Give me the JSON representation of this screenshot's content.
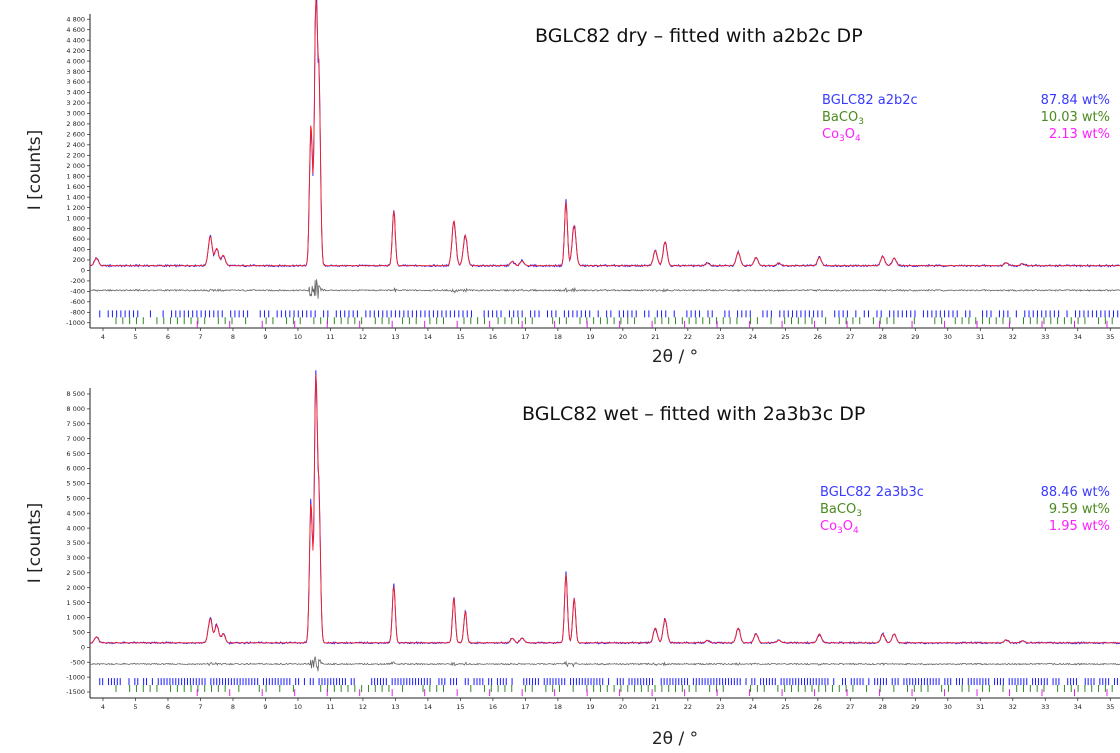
{
  "chart_data": [
    {
      "type": "line",
      "title": "BGLC82 dry – fitted with a2b2c DP",
      "xlabel": "2θ / °",
      "ylabel": "I [counts]",
      "xlim": [
        3.6,
        35.3
      ],
      "ylim": [
        -1100,
        4900
      ],
      "xticks": [
        4,
        5,
        6,
        7,
        8,
        9,
        10,
        11,
        12,
        13,
        14,
        15,
        16,
        17,
        18,
        19,
        20,
        21,
        22,
        23,
        24,
        25,
        26,
        27,
        28,
        29,
        30,
        31,
        32,
        33,
        34,
        35
      ],
      "yticks": [
        4800,
        4600,
        4400,
        4200,
        4000,
        3800,
        3600,
        3400,
        3200,
        3000,
        2800,
        2600,
        2400,
        2200,
        2000,
        1800,
        1600,
        1400,
        1200,
        1000,
        800,
        600,
        400,
        200,
        0,
        -200,
        -400,
        -600,
        -800,
        -1000
      ],
      "ytick_labels": [
        "4 800",
        "4 600",
        "4 400",
        "4 200",
        "4 000",
        "3 800",
        "3 600",
        "3 400",
        "3 200",
        "3 000",
        "2 800",
        "2 600",
        "2 400",
        "2 200",
        "2 000",
        "1 800",
        "1 600",
        "1 400",
        "1 200",
        "1 000",
        "800",
        "600",
        "400",
        "200",
        "0",
        "-200",
        "-400",
        "-600",
        "-800",
        "-1000"
      ],
      "background": 90,
      "difference_offset": -380,
      "peaks": [
        [
          3.8,
          150
        ],
        [
          7.3,
          560
        ],
        [
          7.5,
          330
        ],
        [
          7.7,
          200
        ],
        [
          10.4,
          2700
        ],
        [
          10.55,
          4800
        ],
        [
          10.65,
          3300
        ],
        [
          12.95,
          1050
        ],
        [
          14.8,
          860
        ],
        [
          15.15,
          580
        ],
        [
          16.6,
          80
        ],
        [
          16.9,
          90
        ],
        [
          18.25,
          1220
        ],
        [
          18.5,
          760
        ],
        [
          21.0,
          290
        ],
        [
          21.3,
          460
        ],
        [
          22.6,
          50
        ],
        [
          23.55,
          260
        ],
        [
          24.1,
          160
        ],
        [
          24.8,
          50
        ],
        [
          26.05,
          160
        ],
        [
          28.0,
          180
        ],
        [
          28.35,
          150
        ],
        [
          31.8,
          60
        ],
        [
          32.3,
          40
        ]
      ],
      "tick_rows": [
        {
          "name": "BGLC82 a2b2c",
          "y": -830,
          "color": "#1a1aff",
          "start": 3.9,
          "step": 0.13
        },
        {
          "name": "BaCO3",
          "y": -960,
          "color": "#2e8b20",
          "start": 4.4,
          "step": 0.21
        },
        {
          "name": "Co3O4",
          "y": -1030,
          "color": "#e020e0",
          "start": 6.9,
          "step": 1.0
        }
      ],
      "legend": [
        {
          "label": "BGLC82 a2b2c",
          "value": "87.84 wt%",
          "color": "#3a3aff"
        },
        {
          "label": "BaCO",
          "sub": "3",
          "value": "10.03 wt%",
          "color": "#4a8a1e"
        },
        {
          "label": "Co",
          "sub": "3",
          "label2": "O",
          "sub2": "4",
          "value": "2.13 wt%",
          "color": "#ff20ff"
        }
      ]
    },
    {
      "type": "line",
      "title": "BGLC82 wet – fitted with 2a3b3c DP",
      "xlabel": "2θ / °",
      "ylabel": "I [counts]",
      "xlim": [
        3.6,
        35.3
      ],
      "ylim": [
        -1700,
        8700
      ],
      "xticks": [
        4,
        5,
        6,
        7,
        8,
        9,
        10,
        11,
        12,
        13,
        14,
        15,
        16,
        17,
        18,
        19,
        20,
        21,
        22,
        23,
        24,
        25,
        26,
        27,
        28,
        29,
        30,
        31,
        32,
        33,
        34,
        35
      ],
      "yticks": [
        8500,
        8000,
        7500,
        7000,
        6500,
        6000,
        5500,
        5000,
        4500,
        4000,
        3500,
        3000,
        2500,
        2000,
        1500,
        1000,
        500,
        0,
        -500,
        -1000,
        -1500
      ],
      "ytick_labels": [
        "8 500",
        "8 000",
        "7 500",
        "7 000",
        "6 500",
        "6 000",
        "5 500",
        "5 000",
        "4 500",
        "4 000",
        "3 500",
        "3 000",
        "2 500",
        "2 000",
        "1 500",
        "1 000",
        "500",
        "0",
        "-500",
        "-1000",
        "-1500"
      ],
      "background": 150,
      "difference_offset": -560,
      "peaks": [
        [
          3.8,
          200
        ],
        [
          7.3,
          820
        ],
        [
          7.5,
          600
        ],
        [
          7.7,
          300
        ],
        [
          10.4,
          4700
        ],
        [
          10.55,
          8600
        ],
        [
          10.65,
          4400
        ],
        [
          12.95,
          1900
        ],
        [
          14.8,
          1500
        ],
        [
          15.15,
          1050
        ],
        [
          16.6,
          150
        ],
        [
          16.9,
          160
        ],
        [
          18.25,
          2300
        ],
        [
          18.5,
          1500
        ],
        [
          21.0,
          500
        ],
        [
          21.3,
          800
        ],
        [
          22.6,
          80
        ],
        [
          23.55,
          500
        ],
        [
          24.1,
          300
        ],
        [
          24.8,
          90
        ],
        [
          26.05,
          300
        ],
        [
          28.0,
          300
        ],
        [
          28.35,
          300
        ],
        [
          31.8,
          100
        ],
        [
          32.3,
          70
        ]
      ],
      "tick_rows": [
        {
          "name": "BGLC82 2a3b3c",
          "y": -1150,
          "color": "#1a1aff",
          "start": 3.9,
          "step": 0.09
        },
        {
          "name": "BaCO3",
          "y": -1380,
          "color": "#2e8b20",
          "start": 4.4,
          "step": 0.21
        },
        {
          "name": "Co3O4",
          "y": -1520,
          "color": "#e020e0",
          "start": 6.9,
          "step": 1.0
        }
      ],
      "legend": [
        {
          "label": "BGLC82 2a3b3c",
          "value": "88.46 wt%",
          "color": "#3a3aff"
        },
        {
          "label": "BaCO",
          "sub": "3",
          "value": "9.59 wt%",
          "color": "#4a8a1e"
        },
        {
          "label": "Co",
          "sub": "3",
          "label2": "O",
          "sub2": "4",
          "value": "1.95 wt%",
          "color": "#ff20ff"
        }
      ]
    }
  ],
  "colors": {
    "observed": "#1a1aff",
    "calculated": "#ff2020",
    "difference": "#666666",
    "axis": "#222222"
  }
}
